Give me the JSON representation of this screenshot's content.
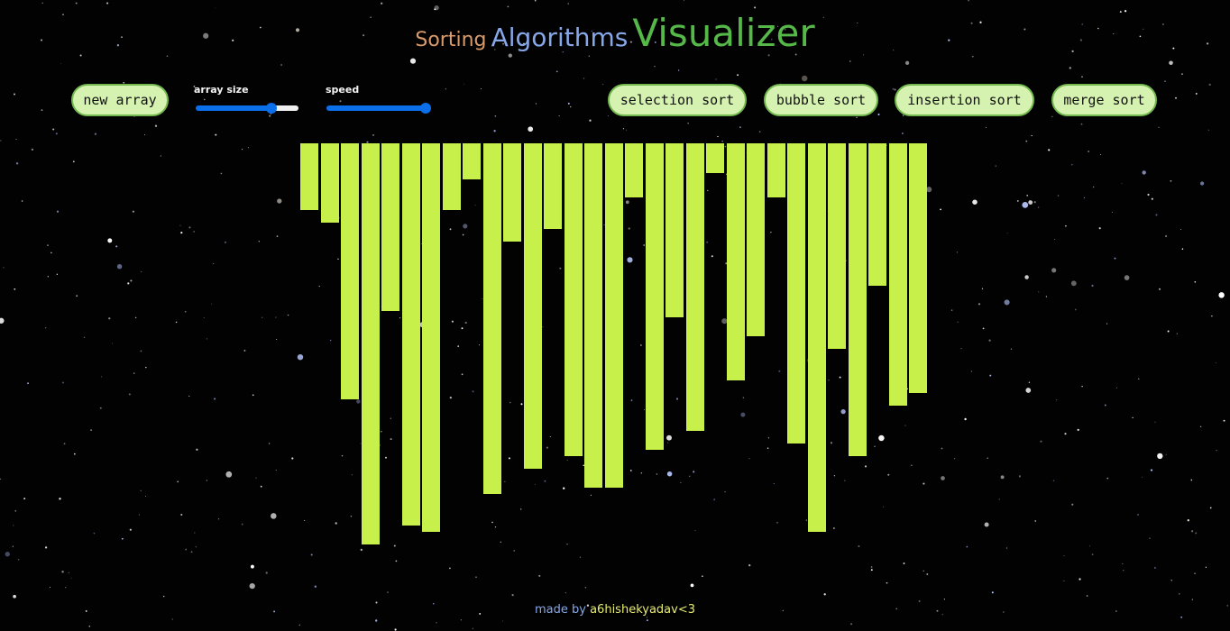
{
  "title": {
    "sorting": "Sorting",
    "algorithms": "Algorithms",
    "visualizer": "Visualizer"
  },
  "controls": {
    "new_array_label": "new array",
    "array_size": {
      "label": "array size",
      "value_fraction": 0.75
    },
    "speed": {
      "label": "speed",
      "value_fraction": 1.0
    }
  },
  "algorithms": [
    {
      "label": "selection sort"
    },
    {
      "label": "bubble sort"
    },
    {
      "label": "insertion sort"
    },
    {
      "label": "merge sort"
    }
  ],
  "array": {
    "bar_color": "#c7f14a",
    "values": [
      74,
      88,
      284,
      445,
      186,
      424,
      431,
      74,
      40,
      389,
      109,
      361,
      95,
      347,
      382,
      382,
      60,
      340,
      193,
      319,
      33,
      263,
      214,
      60,
      333,
      431,
      228,
      347,
      158,
      291,
      277
    ]
  },
  "footer": {
    "made_by": "made by",
    "author": "a6hishekyadav<3"
  }
}
